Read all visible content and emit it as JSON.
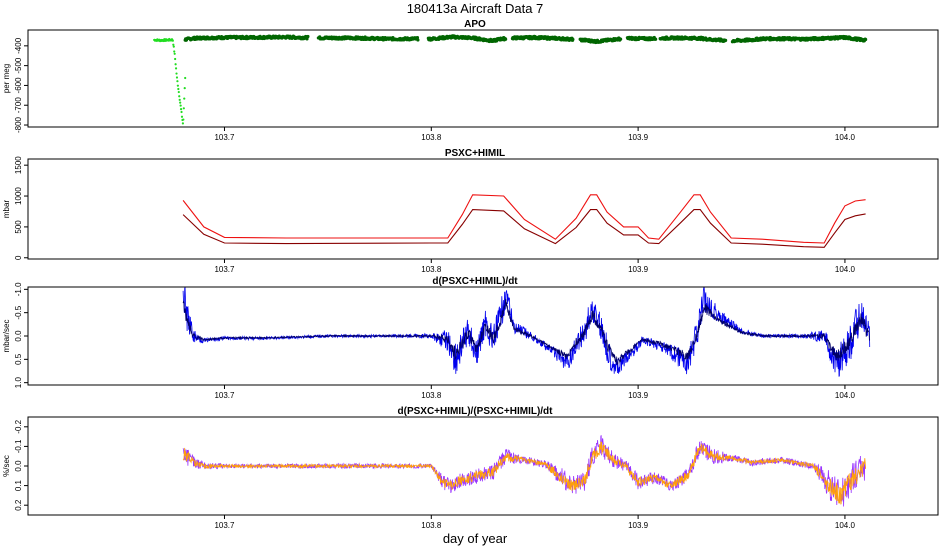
{
  "figure": {
    "title": "180413a   Aircraft Data 7",
    "xlabel": "day of year"
  },
  "chart_data": [
    {
      "type": "scatter",
      "title": "APO",
      "xlabel": "",
      "ylabel": "per meg",
      "xlim": [
        103.605,
        104.045
      ],
      "ylim": [
        -810,
        -320
      ],
      "y_reversed": false,
      "x_ticks": [
        103.7,
        103.8,
        103.9,
        104.0
      ],
      "x_tick_labels": [
        "103.7",
        "103.8",
        "103.9",
        "104.0"
      ],
      "y_ticks": [
        -400,
        -500,
        -600,
        -700,
        -800
      ],
      "y_tick_labels": [
        "-400",
        "-500",
        "-600",
        "-700",
        "-800"
      ],
      "series": [
        {
          "color": "#22dd22",
          "style": "points",
          "x": [
            103.666,
            103.669,
            103.672,
            103.675,
            103.676,
            103.677,
            103.678,
            103.679,
            103.68,
            103.681
          ],
          "y": [
            -370,
            -372,
            -371,
            -369,
            -450,
            -560,
            -640,
            -720,
            -800,
            -560
          ]
        },
        {
          "color": "#006600",
          "style": "points",
          "x": [
            103.681,
            103.685,
            103.69,
            103.7,
            103.71,
            103.72,
            103.73,
            103.737,
            103.745,
            103.76,
            103.77,
            103.775,
            103.785,
            103.795,
            103.8,
            103.81,
            103.82,
            103.825,
            103.83,
            103.833,
            103.84,
            103.85,
            103.86,
            103.865,
            103.875,
            103.88,
            103.885,
            103.89,
            103.895,
            103.905,
            103.91,
            103.92,
            103.93,
            103.935,
            103.945,
            103.955,
            103.96,
            103.97,
            103.98,
            103.99,
            104.0,
            104.01
          ],
          "y": [
            -368,
            -362,
            -360,
            -358,
            -358,
            -357,
            -356,
            -358,
            -360,
            -360,
            -362,
            -364,
            -365,
            -364,
            -365,
            -355,
            -360,
            -368,
            -375,
            -366,
            -360,
            -358,
            -362,
            -365,
            -372,
            -378,
            -372,
            -366,
            -362,
            -364,
            -362,
            -360,
            -362,
            -368,
            -375,
            -370,
            -364,
            -364,
            -366,
            -362,
            -358,
            -372
          ]
        }
      ]
    },
    {
      "type": "line",
      "title": "PSXC+HIMIL",
      "xlabel": "",
      "ylabel": "mbar",
      "xlim": [
        103.605,
        104.045
      ],
      "ylim": [
        -20,
        1600
      ],
      "y_reversed": false,
      "x_ticks": [
        103.7,
        103.8,
        103.9,
        104.0
      ],
      "x_tick_labels": [
        "103.7",
        "103.8",
        "103.9",
        "104.0"
      ],
      "y_ticks": [
        0,
        500,
        1000,
        1500
      ],
      "y_tick_labels": [
        "0",
        "500",
        "1000",
        "1500"
      ],
      "series": [
        {
          "color": "#ee1111",
          "style": "line",
          "x": [
            103.68,
            103.69,
            103.7,
            103.73,
            103.76,
            103.8,
            103.808,
            103.815,
            103.82,
            103.835,
            103.845,
            103.86,
            103.87,
            103.877,
            103.88,
            103.885,
            103.893,
            103.9,
            103.905,
            103.91,
            103.92,
            103.927,
            103.93,
            103.935,
            103.945,
            103.96,
            103.98,
            103.99,
            103.995,
            104.0,
            104.005,
            104.01
          ],
          "y": [
            930,
            500,
            330,
            320,
            320,
            320,
            320,
            700,
            1020,
            1000,
            620,
            300,
            640,
            1020,
            1020,
            740,
            500,
            500,
            320,
            300,
            720,
            1020,
            1020,
            740,
            320,
            300,
            250,
            240,
            560,
            840,
            920,
            940
          ]
        },
        {
          "color": "#880000",
          "style": "line",
          "x": [
            103.68,
            103.69,
            103.7,
            103.73,
            103.76,
            103.8,
            103.808,
            103.815,
            103.82,
            103.835,
            103.845,
            103.86,
            103.87,
            103.877,
            103.88,
            103.885,
            103.893,
            103.9,
            103.905,
            103.91,
            103.92,
            103.927,
            103.93,
            103.935,
            103.945,
            103.96,
            103.98,
            103.99,
            103.995,
            104.0,
            104.005,
            104.01
          ],
          "y": [
            700,
            380,
            240,
            230,
            235,
            240,
            240,
            540,
            780,
            760,
            470,
            230,
            490,
            780,
            780,
            560,
            370,
            370,
            240,
            230,
            550,
            780,
            780,
            560,
            240,
            220,
            180,
            170,
            400,
            620,
            680,
            710
          ]
        }
      ]
    },
    {
      "type": "line",
      "title": "d(PSXC+HIMIL)/dt",
      "xlabel": "",
      "ylabel": "mbar/sec",
      "xlim": [
        103.605,
        104.045
      ],
      "ylim": [
        1.05,
        -1.05
      ],
      "y_reversed": true,
      "x_ticks": [
        103.7,
        103.8,
        103.9,
        104.0
      ],
      "x_tick_labels": [
        "103.7",
        "103.8",
        "103.9",
        "104.0"
      ],
      "y_ticks": [
        -1.0,
        -0.5,
        0.0,
        0.5,
        1.0
      ],
      "y_tick_labels": [
        "-1.0",
        "-0.5",
        "0.0",
        "0.5",
        "1.0"
      ],
      "series": [
        {
          "color": "#0000ee",
          "style": "noisy",
          "x": [
            103.68,
            103.682,
            103.685,
            103.69,
            103.7,
            103.72,
            103.75,
            103.78,
            103.8,
            103.808,
            103.812,
            103.818,
            103.822,
            103.826,
            103.83,
            103.834,
            103.836,
            103.84,
            103.85,
            103.858,
            103.866,
            103.87,
            103.874,
            103.878,
            103.882,
            103.886,
            103.89,
            103.896,
            103.902,
            103.91,
            103.918,
            103.924,
            103.928,
            103.932,
            103.94,
            103.95,
            103.96,
            103.98,
            103.99,
            103.996,
            104.002,
            104.008,
            104.012
          ],
          "y": [
            -0.9,
            -0.4,
            0.0,
            0.1,
            0.05,
            0.05,
            0.0,
            0.0,
            0.0,
            0.1,
            0.5,
            -0.1,
            0.4,
            -0.3,
            0.1,
            -0.5,
            -0.9,
            -0.2,
            0.05,
            0.3,
            0.6,
            0.2,
            -0.1,
            -0.6,
            -0.2,
            0.4,
            0.7,
            0.4,
            0.1,
            0.2,
            0.4,
            0.6,
            0.0,
            -0.8,
            -0.4,
            -0.1,
            0.0,
            0.0,
            0.0,
            0.6,
            0.2,
            -0.5,
            0.1
          ],
          "noise": [
            0.4,
            0.35,
            0.15,
            0.05,
            0.04,
            0.03,
            0.03,
            0.03,
            0.05,
            0.25,
            0.4,
            0.3,
            0.3,
            0.3,
            0.3,
            0.35,
            0.3,
            0.15,
            0.08,
            0.1,
            0.2,
            0.25,
            0.3,
            0.3,
            0.3,
            0.3,
            0.2,
            0.15,
            0.1,
            0.1,
            0.2,
            0.25,
            0.3,
            0.3,
            0.15,
            0.06,
            0.04,
            0.04,
            0.15,
            0.35,
            0.4,
            0.4,
            0.4
          ]
        },
        {
          "color": "#000066",
          "style": "noisy",
          "x": [
            103.68,
            103.682,
            103.685,
            103.69,
            103.7,
            103.72,
            103.75,
            103.78,
            103.8,
            103.808,
            103.812,
            103.818,
            103.822,
            103.826,
            103.83,
            103.834,
            103.836,
            103.84,
            103.85,
            103.858,
            103.866,
            103.87,
            103.874,
            103.878,
            103.882,
            103.886,
            103.89,
            103.896,
            103.902,
            103.91,
            103.918,
            103.924,
            103.928,
            103.932,
            103.94,
            103.95,
            103.96,
            103.98,
            103.99,
            103.996,
            104.002,
            104.008,
            104.012
          ],
          "y": [
            -0.7,
            -0.3,
            0.0,
            0.08,
            0.04,
            0.04,
            0.0,
            0.0,
            0.0,
            0.08,
            0.4,
            -0.08,
            0.3,
            -0.2,
            0.08,
            -0.4,
            -0.7,
            -0.15,
            0.04,
            0.25,
            0.45,
            0.15,
            -0.08,
            -0.45,
            -0.15,
            0.3,
            0.55,
            0.3,
            0.08,
            0.15,
            0.3,
            0.45,
            0.0,
            -0.6,
            -0.3,
            -0.08,
            0.0,
            0.0,
            0.0,
            0.45,
            0.15,
            -0.4,
            0.08
          ],
          "noise": [
            0.15,
            0.12,
            0.06,
            0.02,
            0.02,
            0.015,
            0.015,
            0.015,
            0.02,
            0.1,
            0.15,
            0.12,
            0.12,
            0.12,
            0.12,
            0.12,
            0.12,
            0.06,
            0.03,
            0.04,
            0.08,
            0.1,
            0.12,
            0.12,
            0.12,
            0.12,
            0.08,
            0.06,
            0.04,
            0.04,
            0.08,
            0.1,
            0.12,
            0.12,
            0.06,
            0.03,
            0.02,
            0.02,
            0.06,
            0.14,
            0.15,
            0.15,
            0.15
          ]
        }
      ]
    },
    {
      "type": "line",
      "title": "d(PSXC+HIMIL)/(PSXC+HIMIL)/dt",
      "xlabel": "",
      "ylabel": "%/sec",
      "xlim": [
        103.605,
        104.045
      ],
      "ylim": [
        0.25,
        -0.25
      ],
      "y_reversed": true,
      "x_ticks": [
        103.7,
        103.8,
        103.9,
        104.0
      ],
      "x_tick_labels": [
        "103.7",
        "103.8",
        "103.9",
        "104.0"
      ],
      "y_ticks": [
        -0.2,
        -0.1,
        0.0,
        0.1,
        0.2
      ],
      "y_tick_labels": [
        "-0.2",
        "-0.1",
        "0.0",
        "0.1",
        "0.2"
      ],
      "series": [
        {
          "color": "#9933ff",
          "style": "noisy",
          "x": [
            103.68,
            103.685,
            103.69,
            103.7,
            103.72,
            103.75,
            103.78,
            103.8,
            103.805,
            103.81,
            103.815,
            103.822,
            103.83,
            103.836,
            103.845,
            103.855,
            103.862,
            103.868,
            103.874,
            103.878,
            103.882,
            103.888,
            103.894,
            103.9,
            103.908,
            103.916,
            103.924,
            103.93,
            103.936,
            103.945,
            103.955,
            103.97,
            103.985,
            103.992,
            103.998,
            104.004,
            104.01
          ],
          "y": [
            -0.07,
            -0.02,
            0.0,
            0.0,
            0.0,
            0.0,
            0.0,
            0.0,
            0.08,
            0.1,
            0.07,
            0.05,
            0.03,
            -0.05,
            -0.03,
            -0.01,
            0.05,
            0.1,
            0.08,
            -0.05,
            -0.1,
            -0.03,
            0.0,
            0.08,
            0.06,
            0.1,
            0.05,
            -0.1,
            -0.05,
            -0.04,
            -0.02,
            -0.03,
            0.0,
            0.1,
            0.15,
            0.06,
            0.0
          ],
          "noise": [
            0.06,
            0.03,
            0.02,
            0.012,
            0.012,
            0.012,
            0.012,
            0.012,
            0.04,
            0.04,
            0.04,
            0.04,
            0.04,
            0.04,
            0.02,
            0.02,
            0.05,
            0.05,
            0.05,
            0.06,
            0.06,
            0.04,
            0.03,
            0.04,
            0.03,
            0.03,
            0.04,
            0.05,
            0.04,
            0.02,
            0.02,
            0.015,
            0.02,
            0.08,
            0.08,
            0.08,
            0.08
          ]
        },
        {
          "color": "#ff9f0a",
          "style": "noisy",
          "x": [
            103.68,
            103.685,
            103.69,
            103.7,
            103.72,
            103.75,
            103.78,
            103.8,
            103.805,
            103.81,
            103.815,
            103.822,
            103.83,
            103.836,
            103.845,
            103.855,
            103.862,
            103.868,
            103.874,
            103.878,
            103.882,
            103.888,
            103.894,
            103.9,
            103.908,
            103.916,
            103.924,
            103.93,
            103.936,
            103.945,
            103.955,
            103.97,
            103.985,
            103.992,
            103.998,
            104.004,
            104.01
          ],
          "y": [
            -0.07,
            -0.02,
            0.0,
            0.0,
            0.0,
            0.0,
            0.0,
            0.0,
            0.08,
            0.1,
            0.07,
            0.05,
            0.03,
            -0.05,
            -0.03,
            -0.01,
            0.05,
            0.1,
            0.08,
            -0.05,
            -0.1,
            -0.03,
            0.0,
            0.08,
            0.06,
            0.1,
            0.05,
            -0.1,
            -0.05,
            -0.04,
            -0.02,
            -0.03,
            0.0,
            0.1,
            0.15,
            0.06,
            0.0
          ],
          "noise": [
            0.04,
            0.02,
            0.012,
            0.008,
            0.008,
            0.008,
            0.008,
            0.008,
            0.025,
            0.025,
            0.025,
            0.025,
            0.025,
            0.025,
            0.012,
            0.012,
            0.03,
            0.03,
            0.03,
            0.035,
            0.035,
            0.025,
            0.02,
            0.025,
            0.02,
            0.02,
            0.025,
            0.03,
            0.025,
            0.012,
            0.012,
            0.01,
            0.012,
            0.05,
            0.05,
            0.05,
            0.05
          ]
        }
      ]
    }
  ]
}
